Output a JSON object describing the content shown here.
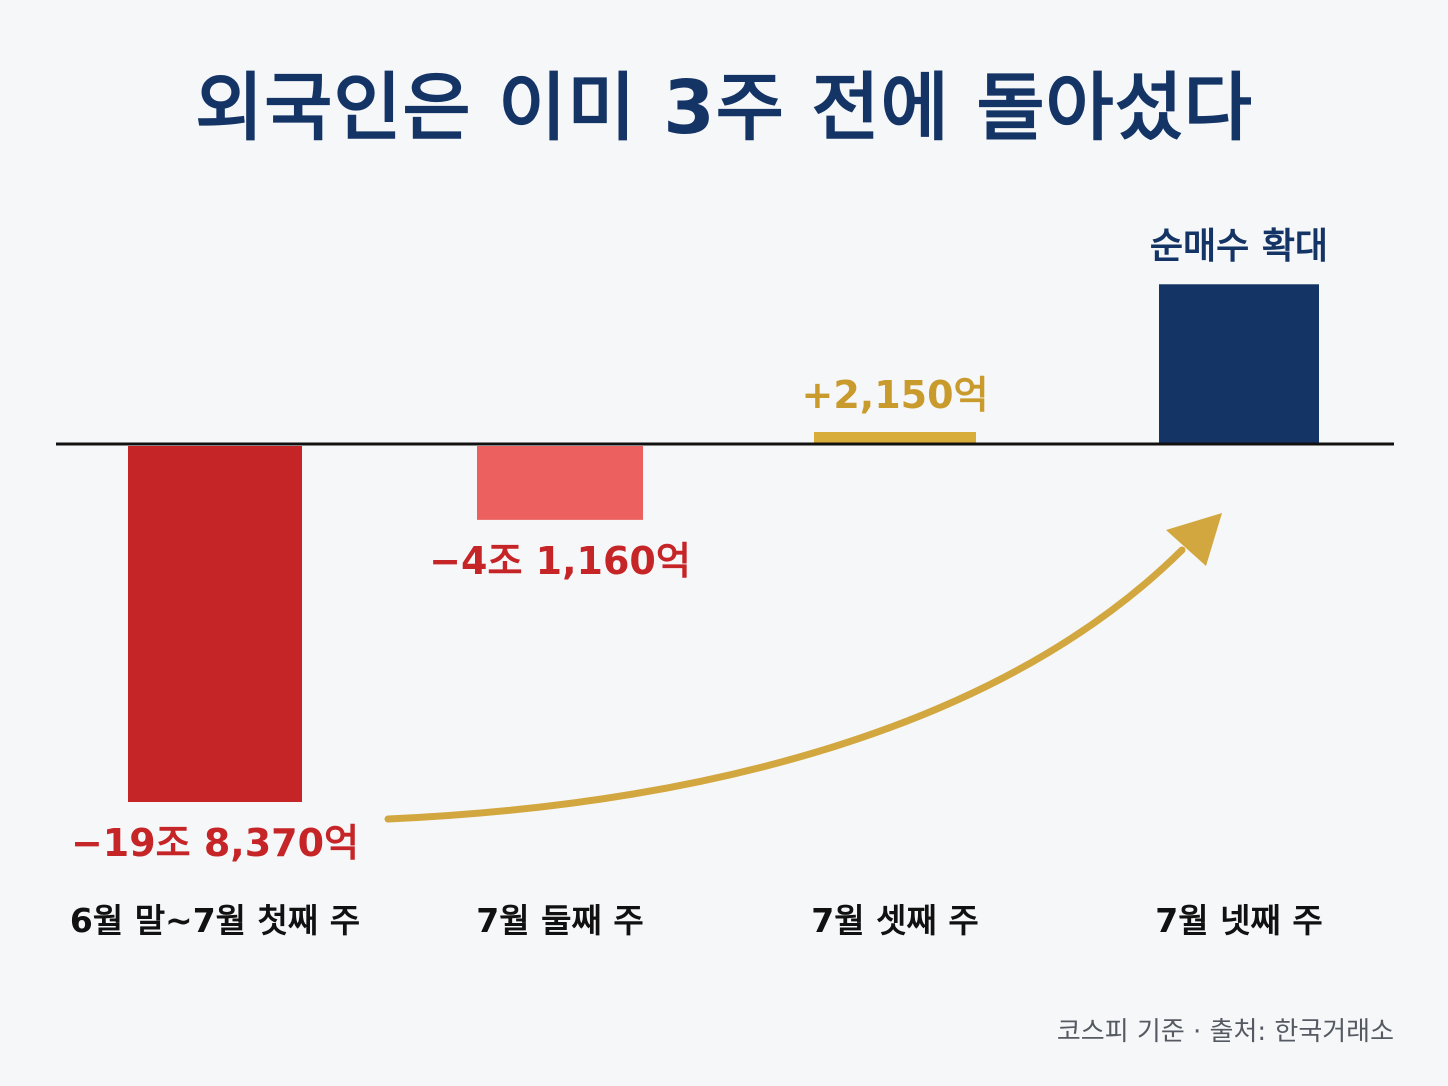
{
  "title": "외국인은 이미 3주 전에 돌아섰다",
  "source_note": "코스피 기준 · 출처: 한국거래소",
  "annotation": "순매수 확대",
  "colors": {
    "title": "#143466",
    "bar_week1": "#c62528",
    "bar_week2": "#ec6060",
    "bar_week3": "#d9ad3a",
    "bar_week4": "#143466",
    "label_negative": "#c62528",
    "label_positive": "#c99a2c",
    "arrow": "#d2a73f",
    "baseline": "#111111"
  },
  "chart_data": {
    "type": "bar",
    "title": "외국인은 이미 3주 전에 돌아섰다",
    "unit": "억",
    "categories": [
      "6월 말~7월 첫째 주",
      "7월 둘째 주",
      "7월 셋째 주",
      "7월 넷째 주"
    ],
    "values": [
      -198370,
      -41160,
      2150,
      89000
    ],
    "value_labels": [
      "−19조 8,370억",
      "−4조 1,160억",
      "+2,150억",
      ""
    ],
    "annotations": [
      {
        "category": "7월 넷째 주",
        "text": "순매수 확대"
      }
    ],
    "trend_arrow": {
      "from": "6월 말~7월 첫째 주",
      "to": "7월 넷째 주",
      "direction": "up"
    },
    "grid": false,
    "legend": "none"
  }
}
